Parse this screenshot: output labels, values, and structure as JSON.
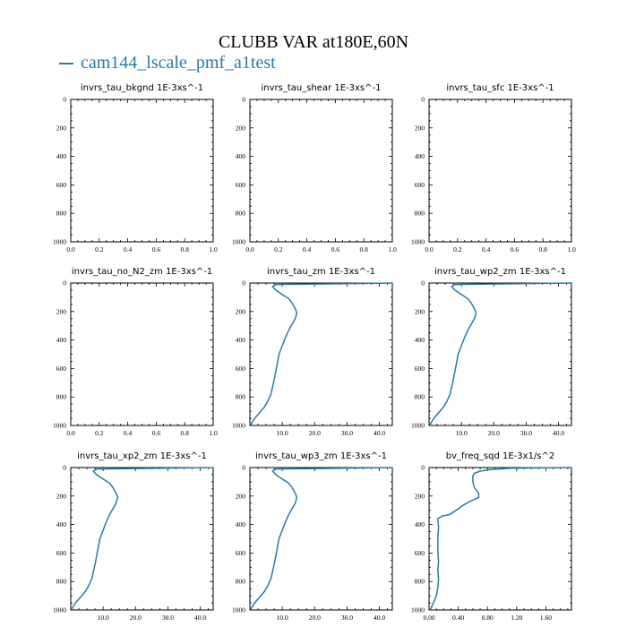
{
  "title": "CLUBB VAR at180E,60N",
  "legend": {
    "label": "cam144_lscale_pmf_a1test",
    "color": "#2a7aa8"
  },
  "chart_data": [
    {
      "type": "line",
      "title": "invrs_tau_bkgnd   1E-3xs^-1",
      "xlim": [
        0,
        1.0
      ],
      "ylim": [
        1000,
        0
      ],
      "xticks": [
        0.0,
        0.2,
        0.4,
        0.6,
        0.8,
        1.0
      ],
      "xtick_labels": [
        "0.0",
        "0.2",
        "0.4",
        "0.6",
        "0.8",
        "1.0"
      ],
      "yticks": [
        0,
        200,
        400,
        600,
        800,
        1000
      ],
      "ytick_labels": [
        "0",
        "200",
        "400",
        "600",
        "800",
        "1000"
      ],
      "series": [
        {
          "color": "#2a7aa8",
          "x": [],
          "y": []
        }
      ]
    },
    {
      "type": "line",
      "title": "invrs_tau_shear   1E-3xs^-1",
      "xlim": [
        0,
        1.0
      ],
      "ylim": [
        1000,
        0
      ],
      "xticks": [
        0.0,
        0.2,
        0.4,
        0.6,
        0.8,
        1.0
      ],
      "xtick_labels": [
        "0.0",
        "0.2",
        "0.4",
        "0.6",
        "0.8",
        "1.0"
      ],
      "yticks": [
        0,
        200,
        400,
        600,
        800,
        1000
      ],
      "ytick_labels": [
        "0",
        "200",
        "400",
        "600",
        "800",
        "1000"
      ],
      "series": [
        {
          "color": "#2a7aa8",
          "x": [],
          "y": []
        }
      ]
    },
    {
      "type": "line",
      "title": "invrs_tau_sfc   1E-3xs^-1",
      "xlim": [
        0,
        1.0
      ],
      "ylim": [
        1000,
        0
      ],
      "xticks": [
        0.0,
        0.2,
        0.4,
        0.6,
        0.8,
        1.0
      ],
      "xtick_labels": [
        "0.0",
        "0.2",
        "0.4",
        "0.6",
        "0.8",
        "1.0"
      ],
      "yticks": [
        0,
        200,
        400,
        600,
        800,
        1000
      ],
      "ytick_labels": [
        "0",
        "200",
        "400",
        "600",
        "800",
        "1000"
      ],
      "series": [
        {
          "color": "#2a7aa8",
          "x": [],
          "y": []
        }
      ]
    },
    {
      "type": "line",
      "title": "invrs_tau_no_N2_zm   1E-3xs^-1",
      "xlim": [
        0,
        1.0
      ],
      "ylim": [
        1000,
        0
      ],
      "xticks": [
        0.0,
        0.2,
        0.4,
        0.6,
        0.8,
        1.0
      ],
      "xtick_labels": [
        "0.0",
        "0.2",
        "0.4",
        "0.6",
        "0.8",
        "1.0"
      ],
      "yticks": [
        0,
        200,
        400,
        600,
        800,
        1000
      ],
      "ytick_labels": [
        "0",
        "200",
        "400",
        "600",
        "800",
        "1000"
      ],
      "series": [
        {
          "color": "#2a7aa8",
          "x": [],
          "y": []
        }
      ]
    },
    {
      "type": "line",
      "title": "invrs_tau_zm   1E-3xs^-1",
      "xlim": [
        0,
        44
      ],
      "ylim": [
        1000,
        0
      ],
      "xticks": [
        10,
        20,
        30,
        40
      ],
      "xtick_labels": [
        "10.0",
        "20.0",
        "30.0",
        "40.0"
      ],
      "yticks": [
        0,
        200,
        400,
        600,
        800,
        1000
      ],
      "ytick_labels": [
        "0",
        "200",
        "400",
        "600",
        "800",
        "1000"
      ],
      "series": [
        {
          "color": "#2a7aa8",
          "x": [
            44,
            8,
            7,
            8,
            10,
            12,
            13,
            14,
            14.5,
            14,
            13,
            12,
            11,
            10,
            9,
            8.5,
            8,
            7.5,
            7,
            6.5,
            5.5,
            4.5,
            3,
            1.5,
            0.5,
            0.3
          ],
          "y": [
            0,
            10,
            25,
            50,
            80,
            110,
            140,
            180,
            210,
            250,
            290,
            330,
            380,
            440,
            500,
            560,
            620,
            680,
            730,
            780,
            830,
            870,
            910,
            950,
            985,
            1000
          ]
        }
      ]
    },
    {
      "type": "line",
      "title": "invrs_tau_wp2_zm   1E-3xs^-1",
      "xlim": [
        0,
        44
      ],
      "ylim": [
        1000,
        0
      ],
      "xticks": [
        10,
        20,
        30,
        40
      ],
      "xtick_labels": [
        "10.0",
        "20.0",
        "30.0",
        "40.0"
      ],
      "yticks": [
        0,
        200,
        400,
        600,
        800,
        1000
      ],
      "ytick_labels": [
        "0",
        "200",
        "400",
        "600",
        "800",
        "1000"
      ],
      "series": [
        {
          "color": "#2a7aa8",
          "x": [
            44,
            8,
            7,
            8,
            10,
            12,
            13,
            14,
            14.5,
            14,
            13,
            12,
            11,
            10,
            9,
            8.5,
            8,
            7.5,
            7,
            6.5,
            5.5,
            4.5,
            3,
            1.5,
            0.5,
            0.3
          ],
          "y": [
            0,
            10,
            25,
            50,
            80,
            110,
            140,
            180,
            210,
            250,
            290,
            330,
            380,
            440,
            500,
            560,
            620,
            680,
            730,
            780,
            830,
            870,
            910,
            950,
            985,
            1000
          ]
        }
      ]
    },
    {
      "type": "line",
      "title": "invrs_tau_xp2_zm   1E-3xs^-1",
      "xlim": [
        0,
        44
      ],
      "ylim": [
        1000,
        0
      ],
      "xticks": [
        10,
        20,
        30,
        40
      ],
      "xtick_labels": [
        "10.0",
        "20.0",
        "30.0",
        "40.0"
      ],
      "yticks": [
        0,
        200,
        400,
        600,
        800,
        1000
      ],
      "ytick_labels": [
        "0",
        "200",
        "400",
        "600",
        "800",
        "1000"
      ],
      "series": [
        {
          "color": "#2a7aa8",
          "x": [
            44,
            8,
            7,
            8,
            10,
            12,
            13,
            14,
            14.5,
            14,
            13,
            12,
            11,
            10,
            9,
            8.5,
            8,
            7.5,
            7,
            6.5,
            5.5,
            4.5,
            3,
            1.5,
            0.5,
            0.3
          ],
          "y": [
            0,
            10,
            25,
            50,
            80,
            110,
            140,
            180,
            210,
            250,
            290,
            330,
            380,
            440,
            500,
            560,
            620,
            680,
            730,
            780,
            830,
            870,
            910,
            950,
            985,
            1000
          ]
        }
      ]
    },
    {
      "type": "line",
      "title": "invrs_tau_wp3_zm   1E-3xs^-1",
      "xlim": [
        0,
        44
      ],
      "ylim": [
        1000,
        0
      ],
      "xticks": [
        10,
        20,
        30,
        40
      ],
      "xtick_labels": [
        "10.0",
        "20.0",
        "30.0",
        "40.0"
      ],
      "yticks": [
        0,
        200,
        400,
        600,
        800,
        1000
      ],
      "ytick_labels": [
        "0",
        "200",
        "400",
        "600",
        "800",
        "1000"
      ],
      "series": [
        {
          "color": "#2a7aa8",
          "x": [
            44,
            8,
            7,
            8,
            10,
            12,
            13,
            14,
            14.5,
            14,
            13,
            12,
            11,
            10,
            9,
            8.5,
            8,
            7.5,
            7,
            6.5,
            5.5,
            4.5,
            3,
            1.5,
            0.5,
            0.3
          ],
          "y": [
            0,
            10,
            25,
            50,
            80,
            110,
            140,
            180,
            210,
            250,
            290,
            330,
            380,
            440,
            500,
            560,
            620,
            680,
            730,
            780,
            830,
            870,
            910,
            950,
            985,
            1000
          ]
        }
      ]
    },
    {
      "type": "line",
      "title": "bv_freq_sqd   1E-3x1/s^2",
      "xlim": [
        0,
        1.95
      ],
      "ylim": [
        1000,
        0
      ],
      "xticks": [
        0.0,
        0.4,
        0.8,
        1.2,
        1.6
      ],
      "xtick_labels": [
        "0.00",
        "0.40",
        "0.80",
        "1.20",
        "1.60"
      ],
      "yticks": [
        0,
        200,
        400,
        600,
        800,
        1000
      ],
      "ytick_labels": [
        "0",
        "200",
        "400",
        "600",
        "800",
        "1000"
      ],
      "series": [
        {
          "color": "#2a7aa8",
          "x": [
            1.95,
            1.1,
            0.82,
            0.7,
            0.62,
            0.6,
            0.6,
            0.62,
            0.68,
            0.68,
            0.55,
            0.45,
            0.4,
            0.28,
            0.18,
            0.12,
            0.13,
            0.12,
            0.12,
            0.13,
            0.12,
            0.13,
            0.12,
            0.1,
            0.06,
            0.03,
            0.01
          ],
          "y": [
            0,
            5,
            15,
            25,
            40,
            60,
            100,
            140,
            180,
            210,
            240,
            270,
            290,
            330,
            340,
            360,
            420,
            500,
            580,
            660,
            720,
            780,
            840,
            900,
            950,
            985,
            1000
          ]
        }
      ]
    }
  ]
}
